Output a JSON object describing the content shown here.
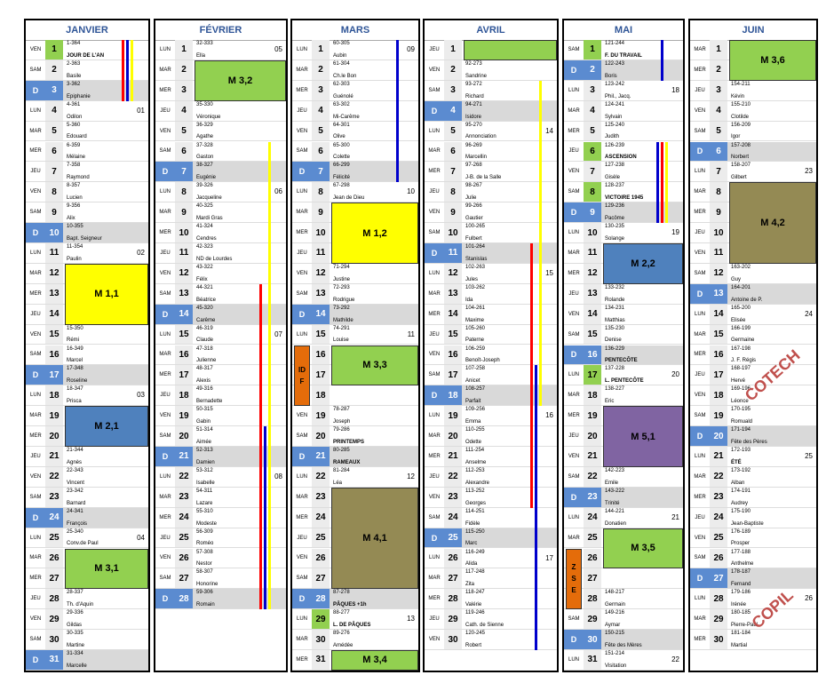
{
  "months": [
    {
      "name": "JANVIER",
      "holidays": [
        1
      ],
      "days": [
        [
          "VEN",
          1,
          "1-364",
          "JOUR DE L'AN"
        ],
        [
          "SAM",
          2,
          "2-363",
          "Basile"
        ],
        [
          "D",
          3,
          "3-362",
          "Epiphanie"
        ],
        [
          "LUN",
          4,
          "4-361",
          "Odilon",
          "01"
        ],
        [
          "MAR",
          5,
          "5-360",
          "Edouard"
        ],
        [
          "MER",
          6,
          "6-359",
          "Mélaine"
        ],
        [
          "JEU",
          7,
          "7-358",
          "Raymond"
        ],
        [
          "VEN",
          8,
          "8-357",
          "Lucien"
        ],
        [
          "SAM",
          9,
          "9-356",
          "Alix"
        ],
        [
          "D",
          10,
          "10-355",
          "Bapt. Seigneur"
        ],
        [
          "LUN",
          11,
          "11-354",
          "Paulin",
          "02"
        ],
        [
          "MAR",
          12
        ],
        [
          "MER",
          13
        ],
        [
          "JEU",
          14
        ],
        [
          "VEN",
          15,
          "15-350",
          "Rémi"
        ],
        [
          "SAM",
          16,
          "16-349",
          "Marcel"
        ],
        [
          "D",
          17,
          "17-348",
          "Roseline"
        ],
        [
          "LUN",
          18,
          "18-347",
          "Prisca",
          "03"
        ],
        [
          "MAR",
          19
        ],
        [
          "MER",
          20
        ],
        [
          "JEU",
          21,
          "21-344",
          "Agnès"
        ],
        [
          "VEN",
          22,
          "22-343",
          "Vincent"
        ],
        [
          "SAM",
          23,
          "23-342",
          "Barnard"
        ],
        [
          "D",
          24,
          "24-341",
          "François"
        ],
        [
          "LUN",
          25,
          "25-340",
          "Conv.de Paul",
          "04"
        ],
        [
          "MAR",
          26
        ],
        [
          "MER",
          27
        ],
        [
          "JEU",
          28,
          "28-337",
          "Th. d'Aquin"
        ],
        [
          "VEN",
          29,
          "29-336",
          "Gildas"
        ],
        [
          "SAM",
          30,
          "30-335",
          "Martine"
        ],
        [
          "D",
          31,
          "31-334",
          "Marcelle"
        ]
      ]
    },
    {
      "name": "FÉVRIER",
      "holidays": [],
      "days": [
        [
          "LUN",
          1,
          "32-333",
          "Ella",
          "05"
        ],
        [
          "MAR",
          2
        ],
        [
          "MER",
          3
        ],
        [
          "JEU",
          4,
          "35-330",
          "Véronique"
        ],
        [
          "VEN",
          5,
          "36-329",
          "Agathe"
        ],
        [
          "SAM",
          6,
          "37-328",
          "Gaston"
        ],
        [
          "D",
          7,
          "38-327",
          "Eugénie"
        ],
        [
          "LUN",
          8,
          "39-326",
          "Jacqueline",
          "06"
        ],
        [
          "MAR",
          9,
          "40-325",
          "Mardi Gras"
        ],
        [
          "MER",
          10,
          "41-324",
          "Cendres"
        ],
        [
          "JEU",
          11,
          "42-323",
          "ND de Lourdes"
        ],
        [
          "VEN",
          12,
          "43-322",
          "Félix"
        ],
        [
          "SAM",
          13,
          "44-321",
          "Béatrice"
        ],
        [
          "D",
          14,
          "45-320",
          "Carême"
        ],
        [
          "LUN",
          15,
          "46-319",
          "Claude",
          "07"
        ],
        [
          "MAR",
          16,
          "47-318",
          "Julienne"
        ],
        [
          "MER",
          17,
          "48-317",
          "Alexis"
        ],
        [
          "JEU",
          18,
          "49-316",
          "Bernadette"
        ],
        [
          "VEN",
          19,
          "50-315",
          "Gabin"
        ],
        [
          "SAM",
          20,
          "51-314",
          "Aimée"
        ],
        [
          "D",
          21,
          "52-313",
          "Damien"
        ],
        [
          "LUN",
          22,
          "53-312",
          "Isabelle",
          "08"
        ],
        [
          "MAR",
          23,
          "54-311",
          "Lazare"
        ],
        [
          "MER",
          24,
          "55-310",
          "Modeste"
        ],
        [
          "JEU",
          25,
          "56-309",
          "Roméo"
        ],
        [
          "VEN",
          26,
          "57-308",
          "Nestor"
        ],
        [
          "SAM",
          27,
          "58-307",
          "Honorine"
        ],
        [
          "D",
          28,
          "59-306",
          "Romain"
        ]
      ]
    },
    {
      "name": "MARS",
      "holidays": [
        29
      ],
      "days": [
        [
          "LUN",
          1,
          "60-305",
          "Aubin",
          "09"
        ],
        [
          "MAR",
          2,
          "61-304",
          "Ch.le Bon"
        ],
        [
          "MER",
          3,
          "62-303",
          "Guénolé"
        ],
        [
          "JEU",
          4,
          "63-302",
          "Mi-Carême"
        ],
        [
          "VEN",
          5,
          "64-301",
          "Olive"
        ],
        [
          "SAM",
          6,
          "65-300",
          "Colette"
        ],
        [
          "D",
          7,
          "66-299",
          "Félicité"
        ],
        [
          "LUN",
          8,
          "67-298",
          "Jean de Dieu",
          "10"
        ],
        [
          "MAR",
          9
        ],
        [
          "MER",
          10
        ],
        [
          "JEU",
          11
        ],
        [
          "VEN",
          12,
          "71-294",
          "Justine"
        ],
        [
          "SAM",
          13,
          "72-293",
          "Rodrigue"
        ],
        [
          "D",
          14,
          "73-292",
          "Mathilde"
        ],
        [
          "LUN",
          15,
          "74-291",
          "Louise",
          "11"
        ],
        [
          "MAR",
          16
        ],
        [
          "MER",
          17
        ],
        [
          "JEU",
          18
        ],
        [
          "VEN",
          19,
          "78-287",
          "Joseph"
        ],
        [
          "SAM",
          20,
          "79-286",
          "PRINTEMPS"
        ],
        [
          "D",
          21,
          "80-285",
          "RAMEAUX"
        ],
        [
          "LUN",
          22,
          "81-284",
          "Léa",
          "12"
        ],
        [
          "MAR",
          23
        ],
        [
          "MER",
          24
        ],
        [
          "JEU",
          25
        ],
        [
          "VEN",
          26
        ],
        [
          "SAM",
          27
        ],
        [
          "D",
          28,
          "87-278",
          "PÂQUES +1h"
        ],
        [
          "LUN",
          29,
          "88-277",
          "L. DE PÂQUES",
          "13"
        ],
        [
          "MAR",
          30,
          "89-276",
          "Amédée"
        ],
        [
          "MER",
          31
        ]
      ]
    },
    {
      "name": "AVRIL",
      "holidays": [],
      "days": [
        [
          "JEU",
          1
        ],
        [
          "VEN",
          2,
          "92-273",
          "Sandrine"
        ],
        [
          "SAM",
          3,
          "93-272",
          "Richard"
        ],
        [
          "D",
          4,
          "94-271",
          "Isidore"
        ],
        [
          "LUN",
          5,
          "95-270",
          "Annonciation",
          "14"
        ],
        [
          "MAR",
          6,
          "96-269",
          "Marcellin"
        ],
        [
          "MER",
          7,
          "97-268",
          "J-B. de la Salle"
        ],
        [
          "JEU",
          8,
          "98-267",
          "Julie"
        ],
        [
          "VEN",
          9,
          "99-266",
          "Gautier"
        ],
        [
          "SAM",
          10,
          "100-265",
          "Fulbert"
        ],
        [
          "D",
          11,
          "101-264",
          "Stanislas"
        ],
        [
          "LUN",
          12,
          "102-263",
          "Jules",
          "15"
        ],
        [
          "MAR",
          13,
          "103-262",
          "Ida"
        ],
        [
          "MER",
          14,
          "104-261",
          "Maxime"
        ],
        [
          "JEU",
          15,
          "105-260",
          "Paterne"
        ],
        [
          "VEN",
          16,
          "106-259",
          "Benoît-Joseph"
        ],
        [
          "SAM",
          17,
          "107-258",
          "Anicet"
        ],
        [
          "D",
          18,
          "108-257",
          "Parfait"
        ],
        [
          "LUN",
          19,
          "109-256",
          "Emma",
          "16"
        ],
        [
          "MAR",
          20,
          "110-255",
          "Odette"
        ],
        [
          "MER",
          21,
          "111-254",
          "Anselme"
        ],
        [
          "JEU",
          22,
          "112-253",
          "Alexandre"
        ],
        [
          "VEN",
          23,
          "113-252",
          "Georges"
        ],
        [
          "SAM",
          24,
          "114-251",
          "Fidèle"
        ],
        [
          "D",
          25,
          "115-250",
          "Marc"
        ],
        [
          "LUN",
          26,
          "116-249",
          "Alida",
          "17"
        ],
        [
          "MAR",
          27,
          "117-248",
          "Zita"
        ],
        [
          "MER",
          28,
          "118-247",
          "Valérie"
        ],
        [
          "JEU",
          29,
          "119-246",
          "Cath. de Sienne"
        ],
        [
          "VEN",
          30,
          "120-245",
          "Robert"
        ]
      ]
    },
    {
      "name": "MAI",
      "holidays": [
        1,
        6,
        8,
        17
      ],
      "days": [
        [
          "SAM",
          1,
          "121-244",
          "F. DU TRAVAIL"
        ],
        [
          "D",
          2,
          "122-243",
          "Boris"
        ],
        [
          "LUN",
          3,
          "123-242",
          "Phil., Jacq.",
          "18"
        ],
        [
          "MAR",
          4,
          "124-241",
          "Sylvain"
        ],
        [
          "MER",
          5,
          "125-240",
          "Judith"
        ],
        [
          "JEU",
          6,
          "126-239",
          "ASCENSION"
        ],
        [
          "VEN",
          7,
          "127-238",
          "Gisèle"
        ],
        [
          "SAM",
          8,
          "128-237",
          "VICTOIRE 1945"
        ],
        [
          "D",
          9,
          "129-236",
          "Pacôme"
        ],
        [
          "LUN",
          10,
          "130-235",
          "Solange",
          "19"
        ],
        [
          "MAR",
          11
        ],
        [
          "MER",
          12
        ],
        [
          "JEU",
          13,
          "133-232",
          "Rolande"
        ],
        [
          "VEN",
          14,
          "134-231",
          "Matthias"
        ],
        [
          "SAM",
          15,
          "135-230",
          "Denise"
        ],
        [
          "D",
          16,
          "136-229",
          "PENTECÔTE"
        ],
        [
          "LUN",
          17,
          "137-228",
          "L. PENTECÔTE",
          "20"
        ],
        [
          "MAR",
          18,
          "138-227",
          "Eric"
        ],
        [
          "MER",
          19
        ],
        [
          "JEU",
          20
        ],
        [
          "VEN",
          21
        ],
        [
          "SAM",
          22,
          "142-223",
          "Emile"
        ],
        [
          "D",
          23,
          "143-222",
          "Trinité"
        ],
        [
          "LUN",
          24,
          "144-221",
          "Donatien",
          "21"
        ],
        [
          "MAR",
          25
        ],
        [
          "MER",
          26
        ],
        [
          "JEU",
          27
        ],
        [
          "VEN",
          28,
          "148-217",
          "Germain"
        ],
        [
          "SAM",
          29,
          "149-216",
          "Aymar"
        ],
        [
          "D",
          30,
          "150-215",
          "Fête des Mères"
        ],
        [
          "LUN",
          31,
          "151-214",
          "Visitation",
          "22"
        ]
      ]
    },
    {
      "name": "JUIN",
      "holidays": [],
      "days": [
        [
          "MAR",
          1
        ],
        [
          "MER",
          2
        ],
        [
          "JEU",
          3,
          "154-211",
          "Kévin"
        ],
        [
          "VEN",
          4,
          "155-210",
          "Clotilde"
        ],
        [
          "SAM",
          5,
          "156-209",
          "Igor"
        ],
        [
          "D",
          6,
          "157-208",
          "Norbert"
        ],
        [
          "LUN",
          7,
          "158-207",
          "Gilbert",
          "23"
        ],
        [
          "MAR",
          8
        ],
        [
          "MER",
          9
        ],
        [
          "JEU",
          10
        ],
        [
          "VEN",
          11
        ],
        [
          "SAM",
          12,
          "163-202",
          "Guy"
        ],
        [
          "D",
          13,
          "164-201",
          "Antoine de P."
        ],
        [
          "LUN",
          14,
          "165-200",
          "Elisée",
          "24"
        ],
        [
          "MAR",
          15,
          "166-199",
          "Germaine"
        ],
        [
          "MER",
          16,
          "167-198",
          "J. F. Régis"
        ],
        [
          "JEU",
          17,
          "168-197",
          "Hervé"
        ],
        [
          "VEN",
          18,
          "169-196",
          "Léonce"
        ],
        [
          "SAM",
          19,
          "170-195",
          "Romuald"
        ],
        [
          "D",
          20,
          "171-194",
          "Fête des Pères"
        ],
        [
          "LUN",
          21,
          "172-193",
          "ÉTÉ",
          "25"
        ],
        [
          "MAR",
          22,
          "173-192",
          "Alban"
        ],
        [
          "MER",
          23,
          "174-191",
          "Audrey"
        ],
        [
          "JEU",
          24,
          "175-190",
          "Jean-Baptiste"
        ],
        [
          "VEN",
          25,
          "176-189",
          "Prosper"
        ],
        [
          "SAM",
          26,
          "177-188",
          "Anthelme"
        ],
        [
          "D",
          27,
          "178-187",
          "Fernand"
        ],
        [
          "LUN",
          28,
          "179-186",
          "Irénée",
          "26"
        ],
        [
          "MAR",
          29,
          "180-185",
          "Pierre-Paul"
        ],
        [
          "MER",
          30,
          "181-184",
          "Martial"
        ]
      ]
    }
  ],
  "events": [
    {
      "month": 0,
      "from": 12,
      "to": 14,
      "label": "M 1,1",
      "color": "#ffff00"
    },
    {
      "month": 0,
      "from": 19,
      "to": 20,
      "label": "M 2,1",
      "color": "#4f81bd"
    },
    {
      "month": 0,
      "from": 26,
      "to": 27,
      "label": "M 3,1",
      "color": "#92d050"
    },
    {
      "month": 1,
      "from": 2,
      "to": 3,
      "label": "M 3,2",
      "color": "#92d050"
    },
    {
      "month": 2,
      "from": 9,
      "to": 11,
      "label": "M 1,2",
      "color": "#ffff00"
    },
    {
      "month": 2,
      "from": 16,
      "to": 17,
      "label": "M 3,3",
      "color": "#92d050"
    },
    {
      "month": 2,
      "from": 23,
      "to": 27,
      "label": "M 4,1",
      "color": "#948a54"
    },
    {
      "month": 2,
      "from": 31,
      "to": 31,
      "label": "M 3,4",
      "color": "#92d050"
    },
    {
      "month": 3,
      "from": 1,
      "to": 1,
      "color": "#92d050"
    },
    {
      "month": 4,
      "from": 11,
      "to": 12,
      "label": "M 2,2",
      "color": "#4f81bd"
    },
    {
      "month": 4,
      "from": 19,
      "to": 21,
      "label": "M 5,1",
      "color": "#8064a2"
    },
    {
      "month": 4,
      "from": 25,
      "to": 26,
      "label": "M 3,5",
      "color": "#92d050"
    },
    {
      "month": 5,
      "from": 1,
      "to": 2,
      "label": "M 3,6",
      "color": "#92d050"
    },
    {
      "month": 5,
      "from": 8,
      "to": 11,
      "label": "M 4,2",
      "color": "#948a54"
    }
  ],
  "side_labels": [
    {
      "month": 2,
      "from": 16,
      "to": 18,
      "text": "IDF",
      "color": "#e46c0a"
    },
    {
      "month": 4,
      "from": 26,
      "to": 28,
      "text": "ZSE",
      "color": "#e46c0a"
    }
  ],
  "bars": [
    {
      "month": 0,
      "from": 1,
      "to": 3,
      "colors": [
        "#ff0000",
        "#0000cc",
        "#ffff00"
      ]
    },
    {
      "month": 1,
      "from": 6,
      "to": 28,
      "colors": [
        null,
        null,
        "#ffff00"
      ]
    },
    {
      "month": 1,
      "from": 13,
      "to": 28,
      "colors": [
        "#ff0000"
      ]
    },
    {
      "month": 1,
      "from": 20,
      "to": 28,
      "colors": [
        null,
        "#0000cc"
      ]
    },
    {
      "month": 2,
      "from": 1,
      "to": 7,
      "colors": [
        null,
        "#0000cc"
      ]
    },
    {
      "month": 3,
      "from": 3,
      "to": 18,
      "colors": [
        null,
        null,
        "#ffff00"
      ]
    },
    {
      "month": 3,
      "from": 11,
      "to": 23,
      "colors": [
        "#ff0000"
      ]
    },
    {
      "month": 3,
      "from": 17,
      "to": 30,
      "colors": [
        null,
        "#0000cc"
      ]
    },
    {
      "month": 4,
      "from": 1,
      "to": 2,
      "colors": [
        null,
        "#0000cc"
      ]
    },
    {
      "month": 4,
      "from": 6,
      "to": 9,
      "colors": [
        "#0000cc",
        "#ff0000",
        "#ffff00"
      ]
    }
  ],
  "annotations": [
    {
      "month": 5,
      "from": 15,
      "to": 19,
      "text": "COTECH",
      "color": "#c0504d"
    },
    {
      "month": 5,
      "from": 27,
      "to": 30,
      "text": "COPIL",
      "color": "#c0504d"
    }
  ]
}
